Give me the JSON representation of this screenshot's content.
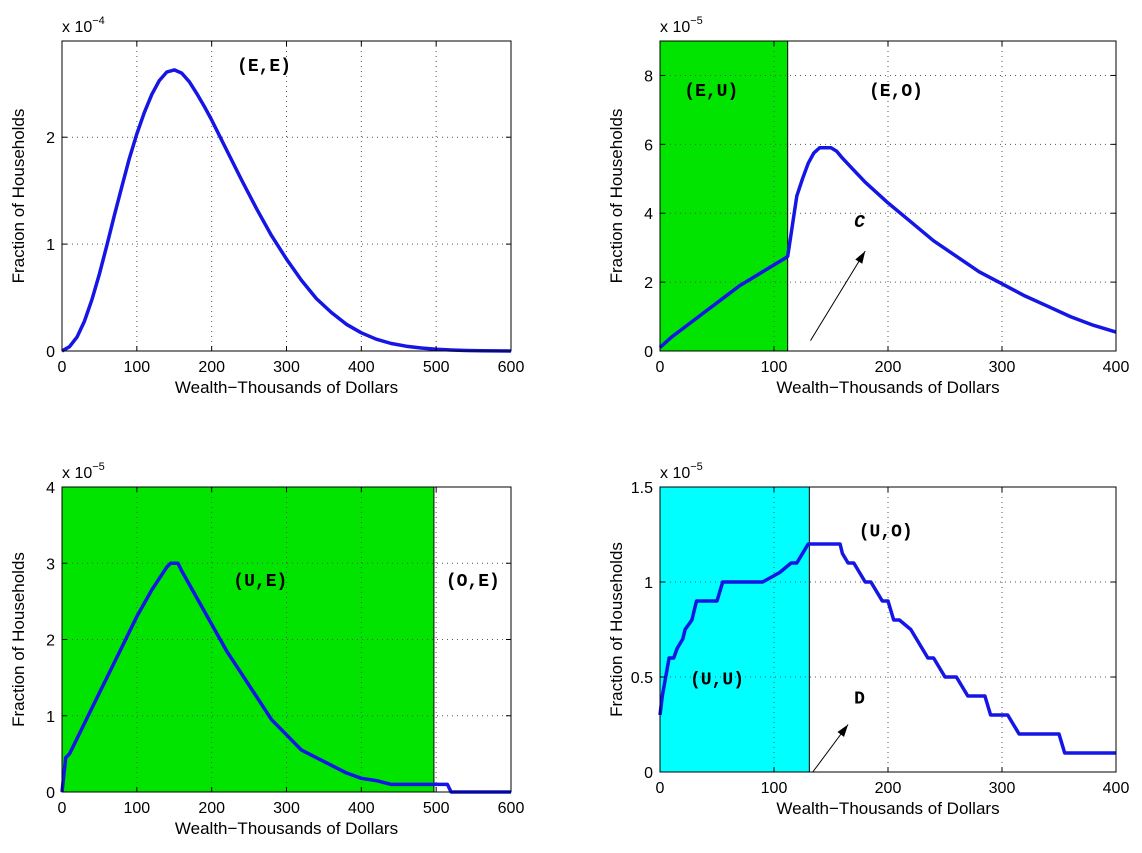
{
  "chart_data": [
    {
      "id": "tl",
      "type": "line",
      "xlim": [
        0,
        600
      ],
      "ylim": [
        0,
        2.9
      ],
      "xticks": [
        0,
        100,
        200,
        300,
        400,
        500,
        600
      ],
      "yticks": [
        0,
        1,
        2
      ],
      "xlabel": "Wealth−Thousands of Dollars",
      "ylabel": "Fraction of Households",
      "exponent_base": "x 10",
      "exponent_power": "−4",
      "grid": true,
      "shaded_regions": [],
      "annotations": [
        {
          "text": "(E,E)",
          "x": 270,
          "y": 2.62,
          "style": "bold"
        }
      ],
      "arrows": [],
      "series": [
        {
          "values_x": [
            0,
            10,
            20,
            30,
            40,
            50,
            60,
            70,
            80,
            90,
            100,
            110,
            120,
            130,
            140,
            150,
            160,
            170,
            180,
            190,
            200,
            220,
            240,
            260,
            280,
            300,
            320,
            340,
            360,
            380,
            400,
            420,
            440,
            460,
            480,
            500,
            520,
            540,
            560,
            580,
            600
          ],
          "values_y": [
            0.0,
            0.04,
            0.13,
            0.28,
            0.48,
            0.72,
            0.99,
            1.27,
            1.54,
            1.8,
            2.03,
            2.23,
            2.4,
            2.53,
            2.61,
            2.63,
            2.6,
            2.52,
            2.41,
            2.29,
            2.16,
            1.88,
            1.6,
            1.33,
            1.08,
            0.86,
            0.66,
            0.49,
            0.36,
            0.25,
            0.17,
            0.11,
            0.07,
            0.045,
            0.028,
            0.016,
            0.009,
            0.005,
            0.002,
            0.001,
            0.0
          ]
        }
      ]
    },
    {
      "id": "tr",
      "type": "line",
      "xlim": [
        0,
        400
      ],
      "ylim": [
        0,
        9
      ],
      "xticks": [
        0,
        100,
        200,
        300,
        400
      ],
      "yticks": [
        0,
        2,
        4,
        6,
        8
      ],
      "xlabel": "Wealth−Thousands of Dollars",
      "ylabel": "Fraction of Households",
      "exponent_base": "x 10",
      "exponent_power": "−5",
      "grid": true,
      "shaded_regions": [
        {
          "x0": 0,
          "x1": 112,
          "color": "#00e400"
        }
      ],
      "annotations": [
        {
          "text": "(E,U)",
          "x": 45,
          "y": 7.4,
          "style": "bold"
        },
        {
          "text": "(E,O)",
          "x": 207,
          "y": 7.4,
          "style": "bold"
        },
        {
          "text": "C",
          "x": 175,
          "y": 3.6,
          "style": "italic"
        }
      ],
      "arrows": [
        {
          "x0": 132,
          "y0": 0.3,
          "x1": 180,
          "y1": 2.9
        }
      ],
      "series": [
        {
          "values_x": [
            0,
            10,
            20,
            30,
            40,
            50,
            60,
            70,
            80,
            90,
            100,
            110,
            112,
            115,
            120,
            125,
            130,
            135,
            140,
            145,
            150,
            155,
            160,
            170,
            180,
            190,
            200,
            220,
            240,
            260,
            280,
            300,
            320,
            340,
            360,
            380,
            400
          ],
          "values_y": [
            0.1,
            0.4,
            0.65,
            0.9,
            1.15,
            1.4,
            1.65,
            1.9,
            2.1,
            2.3,
            2.5,
            2.7,
            2.75,
            3.4,
            4.5,
            5.0,
            5.45,
            5.75,
            5.9,
            5.9,
            5.9,
            5.8,
            5.6,
            5.25,
            4.9,
            4.6,
            4.3,
            3.75,
            3.2,
            2.75,
            2.3,
            1.95,
            1.6,
            1.3,
            1.0,
            0.75,
            0.55
          ]
        }
      ]
    },
    {
      "id": "bl",
      "type": "line",
      "xlim": [
        0,
        600
      ],
      "ylim": [
        0,
        4
      ],
      "xticks": [
        0,
        100,
        200,
        300,
        400,
        500,
        600
      ],
      "yticks": [
        0,
        1,
        2,
        3,
        4
      ],
      "xlabel": "Wealth−Thousands of Dollars",
      "ylabel": "Fraction of Households",
      "exponent_base": "x 10",
      "exponent_power": "−5",
      "grid": true,
      "shaded_regions": [
        {
          "x0": 0,
          "x1": 497,
          "color": "#00e400"
        }
      ],
      "annotations": [
        {
          "text": "(U,E)",
          "x": 265,
          "y": 2.7,
          "style": "bold"
        },
        {
          "text": "(O,E)",
          "x": 549,
          "y": 2.7,
          "style": "bold"
        }
      ],
      "arrows": [],
      "series": [
        {
          "values_x": [
            0,
            5,
            10,
            20,
            40,
            60,
            80,
            100,
            120,
            140,
            145,
            155,
            160,
            180,
            200,
            220,
            240,
            260,
            280,
            300,
            320,
            340,
            360,
            380,
            400,
            420,
            440,
            460,
            480,
            500,
            515,
            520,
            560,
            600
          ],
          "values_y": [
            0.0,
            0.45,
            0.5,
            0.7,
            1.1,
            1.5,
            1.9,
            2.3,
            2.65,
            2.95,
            3.0,
            3.0,
            2.9,
            2.55,
            2.2,
            1.85,
            1.55,
            1.25,
            0.95,
            0.75,
            0.55,
            0.45,
            0.35,
            0.25,
            0.18,
            0.15,
            0.1,
            0.1,
            0.1,
            0.1,
            0.1,
            0.0,
            0.0,
            0.0
          ]
        }
      ]
    },
    {
      "id": "br",
      "type": "line",
      "xlim": [
        0,
        400
      ],
      "ylim": [
        0,
        1.5
      ],
      "xticks": [
        0,
        100,
        200,
        300,
        400
      ],
      "yticks": [
        0,
        0.5,
        1,
        1.5
      ],
      "xlabel": "Wealth−Thousands of Dollars",
      "ylabel": "Fraction of Households",
      "exponent_base": "x 10",
      "exponent_power": "−5",
      "grid": true,
      "shaded_regions": [
        {
          "x0": 0,
          "x1": 131,
          "color": "#00ffff"
        }
      ],
      "annotations": [
        {
          "text": "(U,U)",
          "x": 50,
          "y": 0.46,
          "style": "bold"
        },
        {
          "text": "(U,O)",
          "x": 198,
          "y": 1.24,
          "style": "bold"
        },
        {
          "text": "D",
          "x": 175,
          "y": 0.36,
          "style": "bold"
        }
      ],
      "arrows": [
        {
          "x0": 134,
          "y0": 0.0,
          "x1": 165,
          "y1": 0.25
        }
      ],
      "series": [
        {
          "values_x": [
            0,
            2,
            5,
            8,
            12,
            15,
            20,
            22,
            28,
            32,
            36,
            40,
            50,
            55,
            90,
            105,
            115,
            120,
            130,
            158,
            160,
            165,
            170,
            175,
            180,
            185,
            190,
            195,
            200,
            205,
            210,
            220,
            225,
            235,
            240,
            250,
            260,
            270,
            285,
            290,
            305,
            315,
            330,
            350,
            355,
            400
          ],
          "values_y": [
            0.3,
            0.4,
            0.5,
            0.6,
            0.6,
            0.65,
            0.7,
            0.75,
            0.8,
            0.9,
            0.9,
            0.9,
            0.9,
            1.0,
            1.0,
            1.05,
            1.1,
            1.1,
            1.2,
            1.2,
            1.15,
            1.1,
            1.1,
            1.05,
            1.0,
            1.0,
            0.95,
            0.9,
            0.9,
            0.8,
            0.8,
            0.75,
            0.7,
            0.6,
            0.6,
            0.5,
            0.5,
            0.4,
            0.4,
            0.3,
            0.3,
            0.2,
            0.2,
            0.2,
            0.1,
            0.1
          ]
        }
      ]
    }
  ]
}
